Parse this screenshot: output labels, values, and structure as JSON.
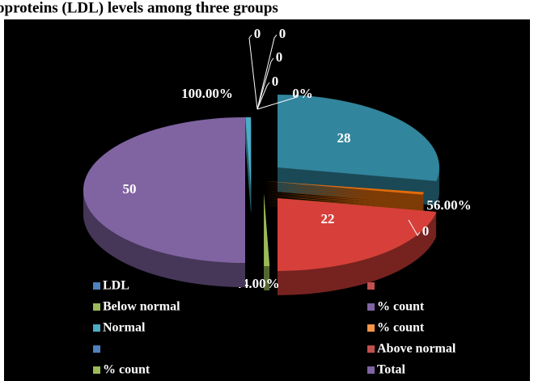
{
  "chart_data": {
    "type": "pie",
    "title": "oproteins (LDL) levels among three groups",
    "values": [
      28,
      22,
      50
    ],
    "colors": [
      "#31859c",
      "#d7403a",
      "#8064a2"
    ],
    "percent_values": [
      56,
      44,
      100
    ],
    "percent_value_labels": [
      "56.00%",
      "44.00%",
      "100.00%"
    ],
    "percent_colors": [
      "#e46c0a",
      "#9bbb59",
      "#4bacc6"
    ],
    "zero_values": [
      0,
      0,
      0,
      0,
      0,
      0
    ],
    "zero_value_labels": [
      "0",
      "0",
      "0",
      "0",
      "0%",
      "0"
    ],
    "legend": [
      {
        "name": "LDL",
        "color": "#4f81bd"
      },
      {
        "name": null,
        "color": "#c0504d"
      },
      {
        "name": "Below normal",
        "color": "#9bbb59"
      },
      {
        "name": "% count",
        "color": "#8064a2"
      },
      {
        "name": "Normal",
        "color": "#4bacc6"
      },
      {
        "name": "% count",
        "color": "#f79646"
      },
      {
        "name": null,
        "color": "#4f81bd"
      },
      {
        "name": "Above normal",
        "color": "#c0504d"
      },
      {
        "name": "% count",
        "color": "#9bbb59"
      },
      {
        "name": "Total",
        "color": "#8064a2"
      }
    ]
  }
}
